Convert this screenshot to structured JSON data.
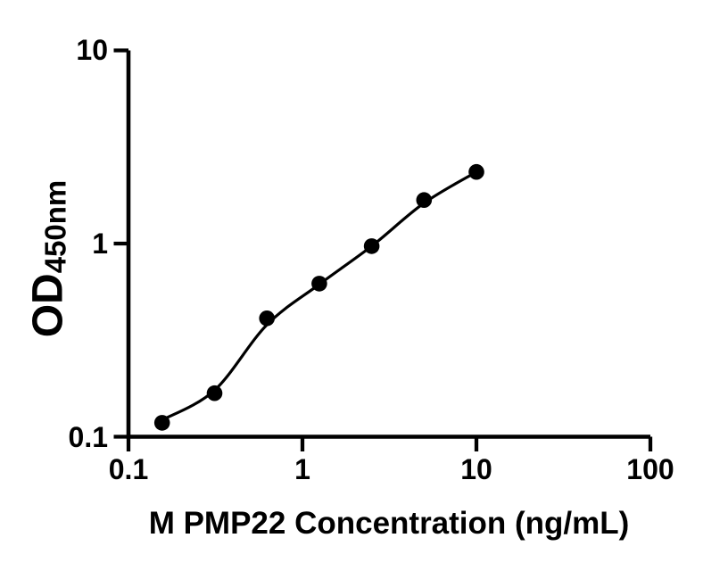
{
  "colors": {
    "foreground": "#000000",
    "background": "#ffffff"
  },
  "chart_data": {
    "type": "scatter",
    "xlabel": "M PMP22 Concentration (ng/mL)",
    "ylabel_main": "OD",
    "ylabel_sub": "450nm",
    "x_scale": "log10",
    "y_scale": "log10",
    "xlim": [
      0.1,
      100
    ],
    "ylim": [
      0.1,
      10
    ],
    "x_tick_values": [
      0.1,
      1,
      10,
      100
    ],
    "x_tick_labels": [
      "0.1",
      "1",
      "10",
      "100"
    ],
    "y_tick_values": [
      10,
      1,
      0.1
    ],
    "y_tick_labels": [
      "10",
      "1",
      "0.1"
    ],
    "grid": false,
    "legend": false,
    "marker": "circle-filled",
    "marker_color": "#000000",
    "line_color": "#000000",
    "series": [
      {
        "x": [
          0.156,
          0.3125,
          0.625,
          1.25,
          2.5,
          5,
          10
        ],
        "y": [
          0.118,
          0.168,
          0.41,
          0.62,
          0.97,
          1.68,
          2.35
        ]
      }
    ],
    "fit_curve": {
      "x": [
        0.156,
        0.3125,
        0.625,
        1.25,
        2.5,
        5,
        10
      ],
      "y": [
        0.122,
        0.174,
        0.38,
        0.615,
        0.97,
        1.62,
        2.35
      ]
    }
  }
}
